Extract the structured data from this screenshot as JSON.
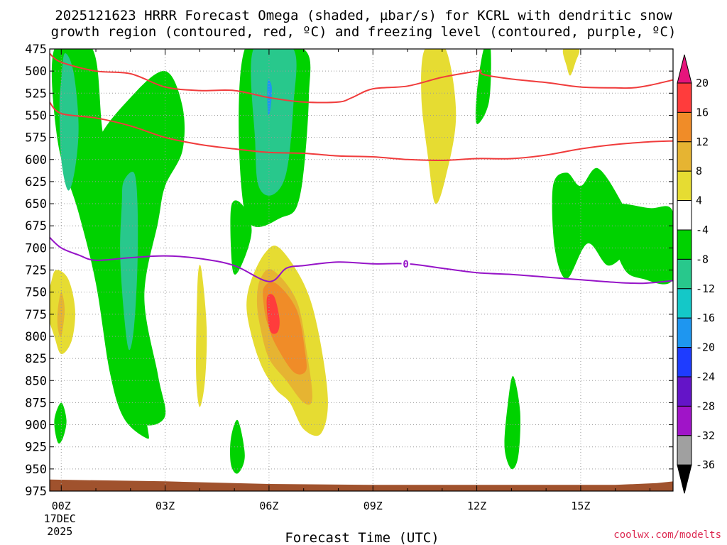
{
  "chart_data": {
    "type": "heatmap",
    "title_lines": [
      "2025121623 HRRR Forecast Omega (shaded, µbar/s) for KCRL with dendritic snow",
      "growth region (contoured, red, ºC) and freezing level (contoured, purple, ºC)"
    ],
    "xlabel": "Forecast Time (UTC)",
    "ylabel": "",
    "credit": "coolwx.com/modelts",
    "x_range_hours": [
      -0.3333,
      17.6667
    ],
    "y_range_hpa": [
      475,
      975
    ],
    "y_ticks": [
      475,
      500,
      525,
      550,
      575,
      600,
      625,
      650,
      675,
      700,
      725,
      750,
      775,
      800,
      825,
      850,
      875,
      900,
      925,
      950,
      975
    ],
    "x_ticks": [
      {
        "hour": 0,
        "label": "00Z",
        "sub1": "17DEC",
        "sub2": "2025"
      },
      {
        "hour": 3,
        "label": "03Z",
        "sub1": "",
        "sub2": ""
      },
      {
        "hour": 6,
        "label": "06Z",
        "sub1": "",
        "sub2": ""
      },
      {
        "hour": 9,
        "label": "09Z",
        "sub1": "",
        "sub2": ""
      },
      {
        "hour": 12,
        "label": "12Z",
        "sub1": "",
        "sub2": ""
      },
      {
        "hour": 15,
        "label": "15Z",
        "sub1": "",
        "sub2": ""
      }
    ],
    "colorbar": {
      "labels": [
        "20",
        "16",
        "12",
        "8",
        "4",
        "-4",
        "-8",
        "-12",
        "-16",
        "-20",
        "-24",
        "-28",
        "-32",
        "-36"
      ],
      "colors": [
        "#ff3c3c",
        "#f08c28",
        "#e6b432",
        "#e6dc32",
        "#ffffff",
        "#00d200",
        "#28c88c",
        "#14c8c8",
        "#1e96f0",
        "#1e3cff",
        "#6414c8",
        "#a014c8",
        "#a0a0a0"
      ],
      "top_arrow_color": "#e6147c",
      "bottom_arrow_color": "#000000"
    },
    "fill_colors": {
      "g8": "#00d200",
      "c12": "#28c88c",
      "c16": "#14c8c8",
      "b20": "#1e96f0",
      "y4": "#e6dc32",
      "o8": "#e6b432",
      "o12": "#f08c28",
      "r16": "#ff3c3c",
      "terrain": "#a0522d"
    },
    "shaded_regions": [
      {
        "class": "g8",
        "pts": [
          [
            -0.2,
            475
          ],
          [
            0.9,
            475
          ],
          [
            1.2,
            570
          ],
          [
            1.6,
            650
          ],
          [
            2.0,
            710
          ],
          [
            2.0,
            780
          ],
          [
            2.2,
            850
          ],
          [
            2.5,
            905
          ],
          [
            2.45,
            915
          ],
          [
            1.8,
            892
          ],
          [
            1.4,
            840
          ],
          [
            1.0,
            740
          ],
          [
            0.5,
            660
          ],
          [
            -0.1,
            580
          ]
        ]
      },
      {
        "class": "g8",
        "pts": [
          [
            1.0,
            585
          ],
          [
            2.0,
            530
          ],
          [
            3.0,
            500
          ],
          [
            3.5,
            540
          ],
          [
            3.5,
            590
          ],
          [
            3.0,
            630
          ],
          [
            2.8,
            670
          ],
          [
            2.4,
            755
          ],
          [
            2.8,
            845
          ],
          [
            3.0,
            890
          ],
          [
            2.4,
            900
          ],
          [
            1.9,
            875
          ],
          [
            1.5,
            805
          ],
          [
            1.2,
            730
          ],
          [
            1.0,
            655
          ]
        ]
      },
      {
        "class": "c12",
        "pts": [
          [
            0.0,
            510
          ],
          [
            0.1,
            480
          ],
          [
            0.35,
            500
          ],
          [
            0.5,
            560
          ],
          [
            0.4,
            610
          ],
          [
            0.2,
            635
          ],
          [
            0.0,
            600
          ],
          [
            -0.05,
            540
          ]
        ]
      },
      {
        "class": "c12",
        "pts": [
          [
            1.75,
            650
          ],
          [
            1.8,
            625
          ],
          [
            2.1,
            615
          ],
          [
            2.2,
            650
          ],
          [
            2.2,
            720
          ],
          [
            2.1,
            790
          ],
          [
            1.95,
            815
          ],
          [
            1.8,
            770
          ],
          [
            1.7,
            705
          ]
        ]
      },
      {
        "class": "g8",
        "pts": [
          [
            5.3,
            475
          ],
          [
            7.0,
            475
          ],
          [
            7.15,
            530
          ],
          [
            6.9,
            640
          ],
          [
            6.4,
            665
          ],
          [
            5.3,
            660
          ]
        ]
      },
      {
        "class": "g8",
        "pts": [
          [
            4.9,
            655
          ],
          [
            5.2,
            650
          ],
          [
            5.5,
            680
          ],
          [
            5.2,
            720
          ],
          [
            4.95,
            725
          ]
        ]
      },
      {
        "class": "c12",
        "pts": [
          [
            5.55,
            475
          ],
          [
            6.7,
            475
          ],
          [
            6.7,
            540
          ],
          [
            6.5,
            615
          ],
          [
            6.1,
            640
          ],
          [
            5.7,
            630
          ],
          [
            5.6,
            580
          ]
        ]
      },
      {
        "class": "b20",
        "pts": [
          [
            5.97,
            510
          ],
          [
            6.08,
            518
          ],
          [
            6.05,
            540
          ],
          [
            5.98,
            550
          ],
          [
            5.95,
            530
          ]
        ]
      },
      {
        "class": "g8",
        "pts": [
          [
            12.2,
            475
          ],
          [
            12.4,
            475
          ],
          [
            12.35,
            535
          ],
          [
            12.0,
            560
          ],
          [
            12.0,
            525
          ]
        ]
      },
      {
        "class": "g8",
        "pts": [
          [
            14.6,
            615
          ],
          [
            15.0,
            630
          ],
          [
            15.5,
            610
          ],
          [
            16.2,
            650
          ],
          [
            16.5,
            680
          ],
          [
            16.4,
            700
          ],
          [
            15.8,
            720
          ],
          [
            15.2,
            695
          ],
          [
            14.6,
            735
          ],
          [
            14.25,
            700
          ],
          [
            14.2,
            630
          ]
        ]
      },
      {
        "class": "g8",
        "pts": [
          [
            15.8,
            655
          ],
          [
            17.0,
            655
          ],
          [
            17.67,
            660
          ],
          [
            17.67,
            735
          ],
          [
            16.8,
            735
          ],
          [
            16.2,
            720
          ]
        ]
      },
      {
        "class": "g8",
        "pts": [
          [
            -0.2,
            895
          ],
          [
            0.0,
            875
          ],
          [
            0.15,
            895
          ],
          [
            0.05,
            915
          ],
          [
            -0.1,
            920
          ]
        ]
      },
      {
        "class": "g8",
        "pts": [
          [
            4.9,
            915
          ],
          [
            5.1,
            895
          ],
          [
            5.3,
            935
          ],
          [
            5.1,
            955
          ],
          [
            4.9,
            945
          ]
        ]
      },
      {
        "class": "g8",
        "pts": [
          [
            12.9,
            875
          ],
          [
            13.05,
            845
          ],
          [
            13.25,
            885
          ],
          [
            13.2,
            935
          ],
          [
            13.0,
            950
          ],
          [
            12.8,
            925
          ]
        ]
      },
      {
        "class": "y4",
        "pts": [
          [
            10.5,
            475
          ],
          [
            11.1,
            475
          ],
          [
            11.4,
            550
          ],
          [
            11.1,
            620
          ],
          [
            10.8,
            650
          ],
          [
            10.6,
            600
          ],
          [
            10.4,
            530
          ]
        ]
      },
      {
        "class": "y4",
        "pts": [
          [
            14.5,
            475
          ],
          [
            14.95,
            475
          ],
          [
            14.85,
            490
          ],
          [
            14.7,
            505
          ],
          [
            14.6,
            495
          ]
        ]
      },
      {
        "class": "y4",
        "pts": [
          [
            -0.45,
            765
          ],
          [
            -0.3,
            740
          ],
          [
            -0.15,
            725
          ],
          [
            0.2,
            735
          ],
          [
            0.4,
            770
          ],
          [
            0.3,
            805
          ],
          [
            0.0,
            820
          ],
          [
            -0.2,
            800
          ]
        ]
      },
      {
        "class": "o8",
        "pts": [
          [
            -0.1,
            770
          ],
          [
            0.0,
            750
          ],
          [
            0.1,
            770
          ],
          [
            0.0,
            800
          ],
          [
            -0.1,
            790
          ]
        ]
      },
      {
        "class": "y4",
        "pts": [
          [
            3.9,
            795
          ],
          [
            3.95,
            730
          ],
          [
            4.05,
            725
          ],
          [
            4.2,
            790
          ],
          [
            4.15,
            850
          ],
          [
            4.0,
            880
          ],
          [
            3.9,
            850
          ]
        ]
      },
      {
        "class": "y4",
        "pts": [
          [
            5.5,
            735
          ],
          [
            5.9,
            705
          ],
          [
            6.3,
            700
          ],
          [
            7.0,
            740
          ],
          [
            7.4,
            790
          ],
          [
            7.7,
            870
          ],
          [
            7.5,
            910
          ],
          [
            7.0,
            905
          ],
          [
            6.6,
            875
          ],
          [
            6.2,
            860
          ],
          [
            5.8,
            835
          ],
          [
            5.5,
            800
          ],
          [
            5.35,
            765
          ]
        ]
      },
      {
        "class": "o8",
        "pts": [
          [
            5.75,
            735
          ],
          [
            6.1,
            725
          ],
          [
            6.8,
            760
          ],
          [
            7.1,
            820
          ],
          [
            7.25,
            870
          ],
          [
            7.0,
            875
          ],
          [
            6.5,
            850
          ],
          [
            6.0,
            825
          ],
          [
            5.75,
            790
          ],
          [
            5.65,
            760
          ]
        ]
      },
      {
        "class": "o12",
        "pts": [
          [
            5.85,
            745
          ],
          [
            6.2,
            740
          ],
          [
            6.8,
            770
          ],
          [
            7.05,
            820
          ],
          [
            7.05,
            840
          ],
          [
            6.7,
            840
          ],
          [
            6.2,
            810
          ],
          [
            5.95,
            785
          ],
          [
            5.85,
            765
          ]
        ]
      },
      {
        "class": "r16",
        "pts": [
          [
            5.95,
            755
          ],
          [
            6.15,
            755
          ],
          [
            6.3,
            780
          ],
          [
            6.25,
            795
          ],
          [
            6.05,
            795
          ],
          [
            5.95,
            775
          ]
        ]
      }
    ],
    "terrain": [
      [
        -0.34,
        962
      ],
      [
        3.0,
        964
      ],
      [
        6.0,
        967
      ],
      [
        9.0,
        968
      ],
      [
        12.0,
        968
      ],
      [
        16.0,
        968
      ],
      [
        17.2,
        966
      ],
      [
        17.67,
        964
      ]
    ],
    "dgz_upper": [
      [
        -0.34,
        480
      ],
      [
        0.0,
        490
      ],
      [
        1.0,
        500
      ],
      [
        2.0,
        503
      ],
      [
        3.0,
        518
      ],
      [
        4.0,
        522
      ],
      [
        5.0,
        522
      ],
      [
        6.0,
        530
      ],
      [
        7.0,
        535
      ],
      [
        8.0,
        535
      ],
      [
        8.4,
        530
      ],
      [
        9.0,
        520
      ],
      [
        10.0,
        517
      ],
      [
        11.0,
        507
      ],
      [
        12.0,
        500
      ],
      [
        12.1,
        499
      ],
      [
        12.2,
        504
      ],
      [
        13.0,
        509
      ],
      [
        14.0,
        513
      ],
      [
        15.0,
        518
      ],
      [
        16.0,
        519
      ],
      [
        16.5,
        519
      ],
      [
        17.0,
        516
      ],
      [
        17.67,
        510
      ]
    ],
    "dgz_lower": [
      [
        -0.34,
        535
      ],
      [
        0.0,
        548
      ],
      [
        1.0,
        553
      ],
      [
        2.0,
        562
      ],
      [
        3.0,
        575
      ],
      [
        4.0,
        583
      ],
      [
        5.0,
        588
      ],
      [
        6.0,
        592
      ],
      [
        7.0,
        593
      ],
      [
        8.0,
        596
      ],
      [
        9.0,
        597
      ],
      [
        10.0,
        600
      ],
      [
        11.0,
        601
      ],
      [
        12.0,
        599
      ],
      [
        13.0,
        599
      ],
      [
        14.0,
        595
      ],
      [
        15.0,
        588
      ],
      [
        16.0,
        583
      ],
      [
        17.0,
        580
      ],
      [
        17.67,
        579
      ]
    ],
    "freezing_level": {
      "label": "0",
      "label_hour": 9.95,
      "label_hpa": 718,
      "pts": [
        [
          -0.34,
          688
        ],
        [
          0.0,
          700
        ],
        [
          0.5,
          708
        ],
        [
          1.0,
          714
        ],
        [
          2.0,
          711
        ],
        [
          3.0,
          709
        ],
        [
          4.0,
          712
        ],
        [
          5.0,
          720
        ],
        [
          6.0,
          738
        ],
        [
          6.5,
          723
        ],
        [
          7.0,
          720
        ],
        [
          8.0,
          716
        ],
        [
          9.0,
          718
        ],
        [
          10.0,
          718
        ],
        [
          11.0,
          723
        ],
        [
          12.0,
          728
        ],
        [
          13.0,
          730
        ],
        [
          14.0,
          733
        ],
        [
          15.0,
          736
        ],
        [
          16.0,
          739
        ],
        [
          16.8,
          740
        ],
        [
          17.67,
          737
        ]
      ]
    }
  }
}
